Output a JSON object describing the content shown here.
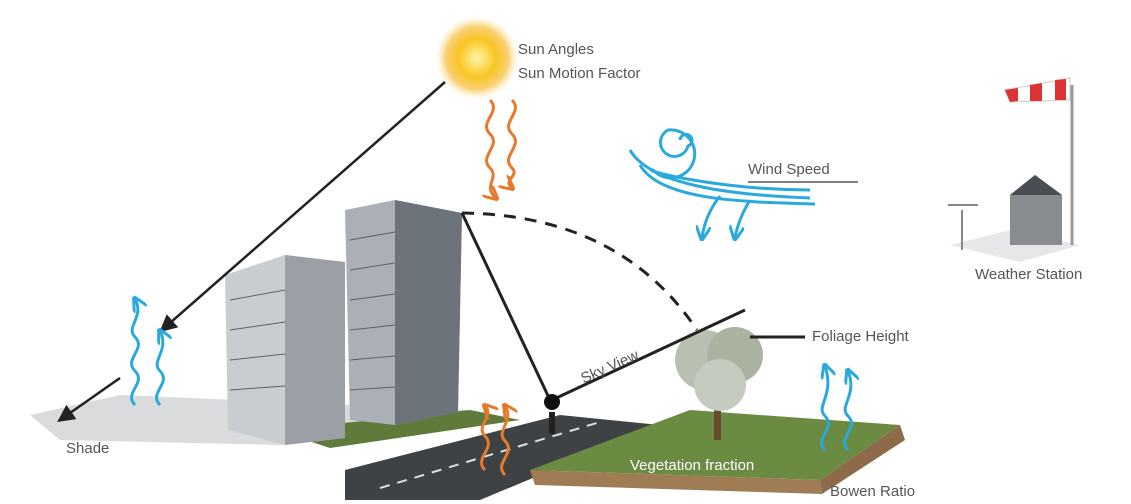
{
  "labels": [
    {
      "text": "Sun Angles"
    },
    {
      "text": "Sun Motion Factor"
    },
    {
      "text": "Wind Speed"
    },
    {
      "text": "Weather Station"
    },
    {
      "text": "Foliage Height"
    },
    {
      "text": "Sky View"
    },
    {
      "text": "Shade"
    },
    {
      "text": "Vegetation fraction"
    },
    {
      "text": "Bowen Ratio"
    }
  ]
}
